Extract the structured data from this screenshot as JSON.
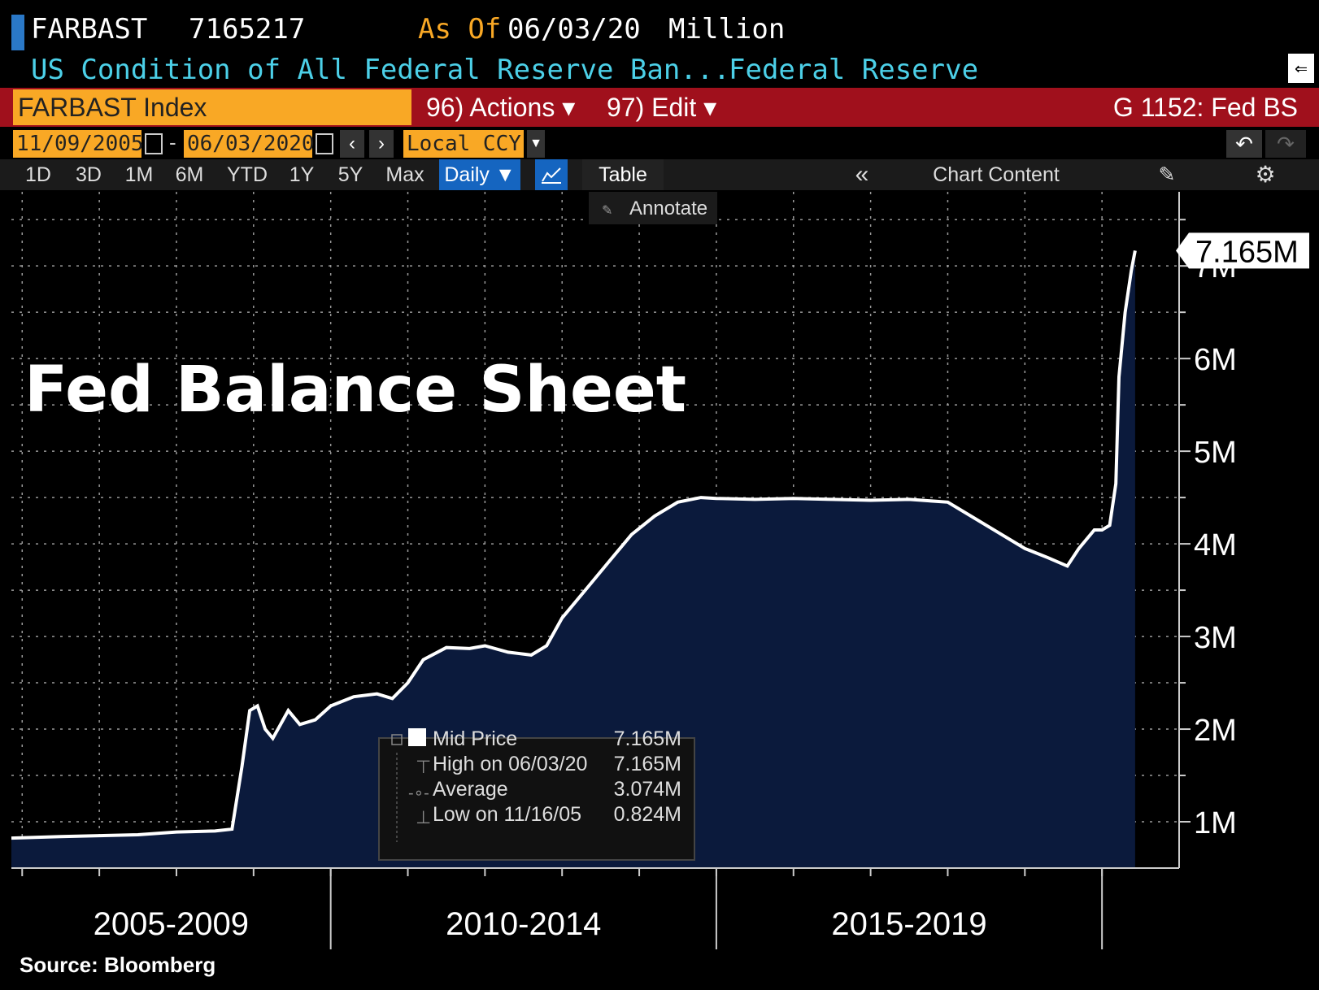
{
  "header": {
    "ticker": "FARBAST",
    "last_value": "7165217",
    "as_of_label": "As Of",
    "as_of_date": "06/03/20",
    "units": "Million",
    "description": "US Condition of All Federal Reserve Ban...",
    "source_name": "Federal Reserve"
  },
  "toolbar": {
    "security": "FARBAST Index",
    "actions_label": "96) Actions ▾",
    "edit_label": "97) Edit ▾",
    "page_title": "G 1152: Fed BS",
    "start_date": "11/09/2005",
    "end_date": "06/03/2020",
    "currency": "Local CCY",
    "periods": [
      "1D",
      "3D",
      "1M",
      "6M",
      "YTD",
      "1Y",
      "5Y",
      "Max"
    ],
    "frequency": "Daily ▼",
    "table_label": "Table",
    "chart_content_label": "Chart Content",
    "annotate_label": "Annotate"
  },
  "chart_data": {
    "type": "area",
    "title": "Fed Balance Sheet",
    "x_groups": [
      "2005-2009",
      "2010-2014",
      "2015-2019"
    ],
    "x_range": [
      2005.86,
      2021.0
    ],
    "ylim": [
      0.5,
      7.8
    ],
    "y_ticks": [
      1,
      2,
      3,
      4,
      5,
      6,
      7
    ],
    "y_tick_labels": [
      "1M",
      "2M",
      "3M",
      "4M",
      "5M",
      "6M",
      "7M"
    ],
    "last_label": "7.165M",
    "series": [
      {
        "name": "Mid Price",
        "x": [
          2005.86,
          2006.5,
          2007.0,
          2007.5,
          2008.0,
          2008.5,
          2008.72,
          2008.85,
          2008.95,
          2009.05,
          2009.15,
          2009.25,
          2009.35,
          2009.45,
          2009.6,
          2009.8,
          2010.0,
          2010.3,
          2010.6,
          2010.8,
          2011.0,
          2011.2,
          2011.5,
          2011.8,
          2012.0,
          2012.3,
          2012.6,
          2012.8,
          2013.0,
          2013.3,
          2013.6,
          2013.9,
          2014.2,
          2014.5,
          2014.8,
          2015.0,
          2015.5,
          2016.0,
          2016.5,
          2017.0,
          2017.5,
          2018.0,
          2018.5,
          2019.0,
          2019.3,
          2019.55,
          2019.7,
          2019.9,
          2020.0,
          2020.1,
          2020.18,
          2020.22,
          2020.3,
          2020.38,
          2020.43
        ],
        "y": [
          0.824,
          0.84,
          0.85,
          0.86,
          0.89,
          0.9,
          0.92,
          1.6,
          2.2,
          2.25,
          2.0,
          1.9,
          2.05,
          2.2,
          2.05,
          2.1,
          2.25,
          2.35,
          2.38,
          2.33,
          2.5,
          2.75,
          2.88,
          2.87,
          2.9,
          2.83,
          2.8,
          2.9,
          3.2,
          3.5,
          3.8,
          4.1,
          4.3,
          4.45,
          4.5,
          4.49,
          4.48,
          4.49,
          4.48,
          4.47,
          4.48,
          4.45,
          4.2,
          3.95,
          3.85,
          3.76,
          3.95,
          4.15,
          4.15,
          4.2,
          4.65,
          5.8,
          6.5,
          6.95,
          7.165
        ]
      }
    ],
    "legend": [
      {
        "label": "Mid Price",
        "value": "7.165M"
      },
      {
        "label": "High on 06/03/20",
        "value": "7.165M"
      },
      {
        "label": "Average",
        "value": "3.074M"
      },
      {
        "label": "Low on 11/16/05",
        "value": "0.824M"
      }
    ],
    "source": "Source: Bloomberg"
  },
  "colors": {
    "fill": "#0b1a3c",
    "line": "#ffffff",
    "grid": "#9a9a9a",
    "orange": "#f9a825",
    "cyan": "#4cd0e8",
    "red": "#a0101c"
  }
}
